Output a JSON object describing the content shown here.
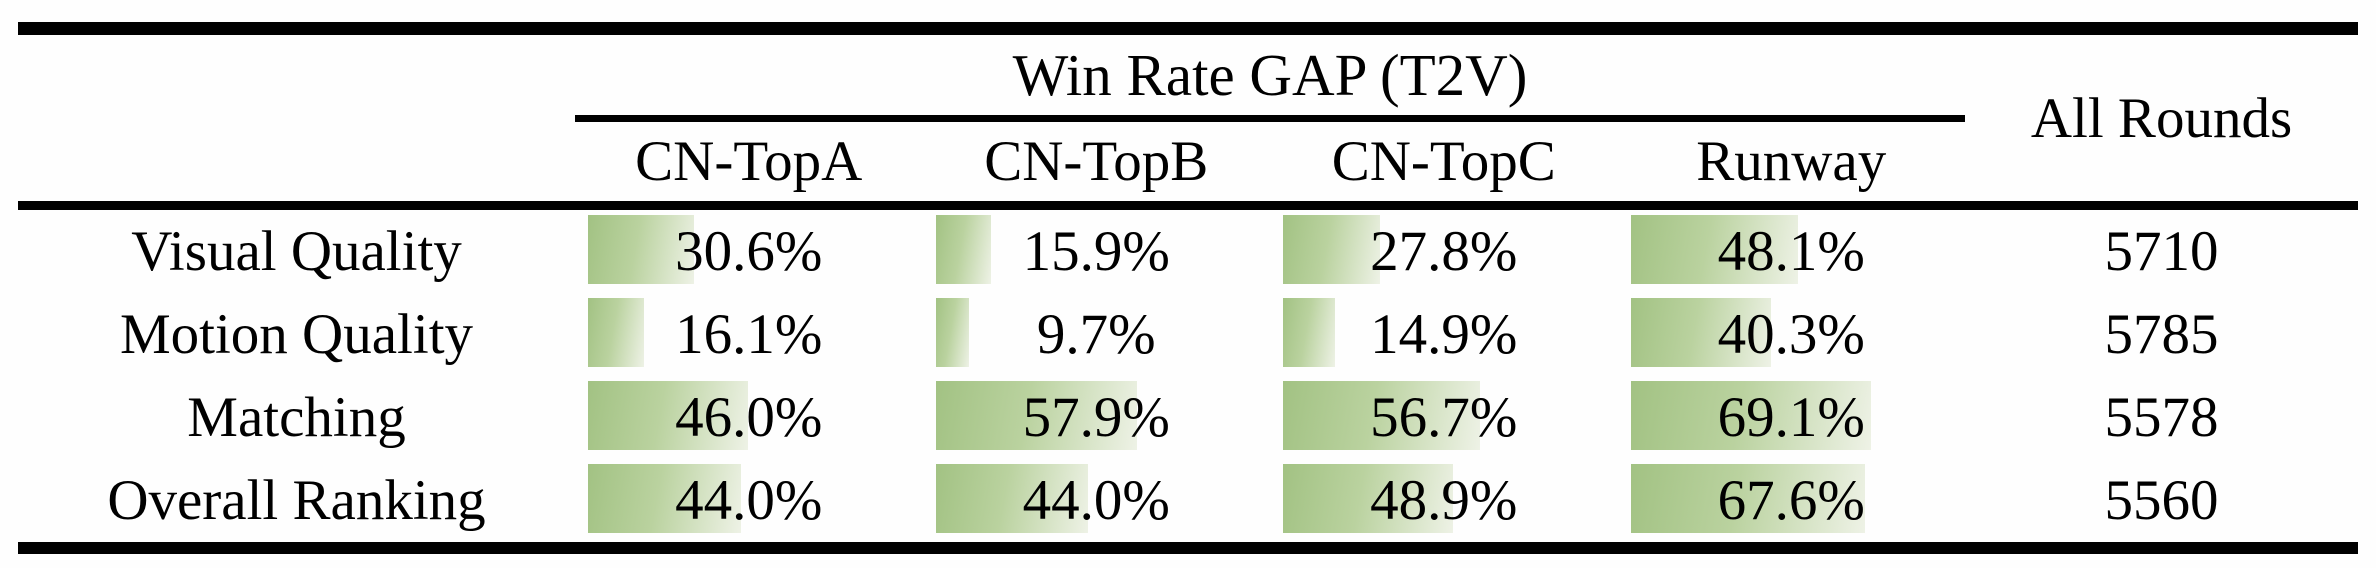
{
  "table": {
    "group_header": "Win Rate GAP (T2V)",
    "all_rounds_header": "All Rounds",
    "columns": [
      "CN-TopA",
      "CN-TopB",
      "CN-TopC",
      "Runway"
    ],
    "rows": [
      {
        "label": "Visual Quality",
        "cells": [
          {
            "text": "30.6%",
            "pct": 30.6
          },
          {
            "text": "15.9%",
            "pct": 15.9
          },
          {
            "text": "27.8%",
            "pct": 27.8
          },
          {
            "text": "48.1%",
            "pct": 48.1
          }
        ],
        "all_rounds": "5710"
      },
      {
        "label": "Motion Quality",
        "cells": [
          {
            "text": "16.1%",
            "pct": 16.1
          },
          {
            "text": "9.7%",
            "pct": 9.7
          },
          {
            "text": "14.9%",
            "pct": 14.9
          },
          {
            "text": "40.3%",
            "pct": 40.3
          }
        ],
        "all_rounds": "5785"
      },
      {
        "label": "Matching",
        "cells": [
          {
            "text": "46.0%",
            "pct": 46.0
          },
          {
            "text": "57.9%",
            "pct": 57.9
          },
          {
            "text": "56.7%",
            "pct": 56.7
          },
          {
            "text": "69.1%",
            "pct": 69.1
          }
        ],
        "all_rounds": "5578"
      },
      {
        "label": "Overall Ranking",
        "cells": [
          {
            "text": "44.0%",
            "pct": 44.0
          },
          {
            "text": "44.0%",
            "pct": 44.0
          },
          {
            "text": "48.9%",
            "pct": 48.9
          },
          {
            "text": "67.6%",
            "pct": 67.6
          }
        ],
        "all_rounds": "5560"
      }
    ],
    "bar_gradient": {
      "from": "#a2c283",
      "mid": "#bad29f",
      "to": "#eef2e6"
    },
    "text_color": "#000000",
    "rule_color": "#000000"
  },
  "chart_data": {
    "type": "table",
    "title": "Win Rate GAP (T2V)",
    "columns": [
      "CN-TopA",
      "CN-TopB",
      "CN-TopC",
      "Runway",
      "All Rounds"
    ],
    "categories": [
      "Visual Quality",
      "Motion Quality",
      "Matching",
      "Overall Ranking"
    ],
    "series": [
      {
        "name": "CN-TopA",
        "values": [
          30.6,
          16.1,
          46.0,
          44.0
        ]
      },
      {
        "name": "CN-TopB",
        "values": [
          15.9,
          9.7,
          57.9,
          44.0
        ]
      },
      {
        "name": "CN-TopC",
        "values": [
          27.8,
          14.9,
          56.7,
          48.9
        ]
      },
      {
        "name": "Runway",
        "values": [
          48.1,
          40.3,
          69.1,
          67.6
        ]
      }
    ],
    "all_rounds": [
      5710,
      5785,
      5578,
      5560
    ],
    "bar_scale": "cell width = 100%, bars left-anchored, value in percent",
    "bar_color": "green gradient #a2c283 to #eef2e6"
  }
}
